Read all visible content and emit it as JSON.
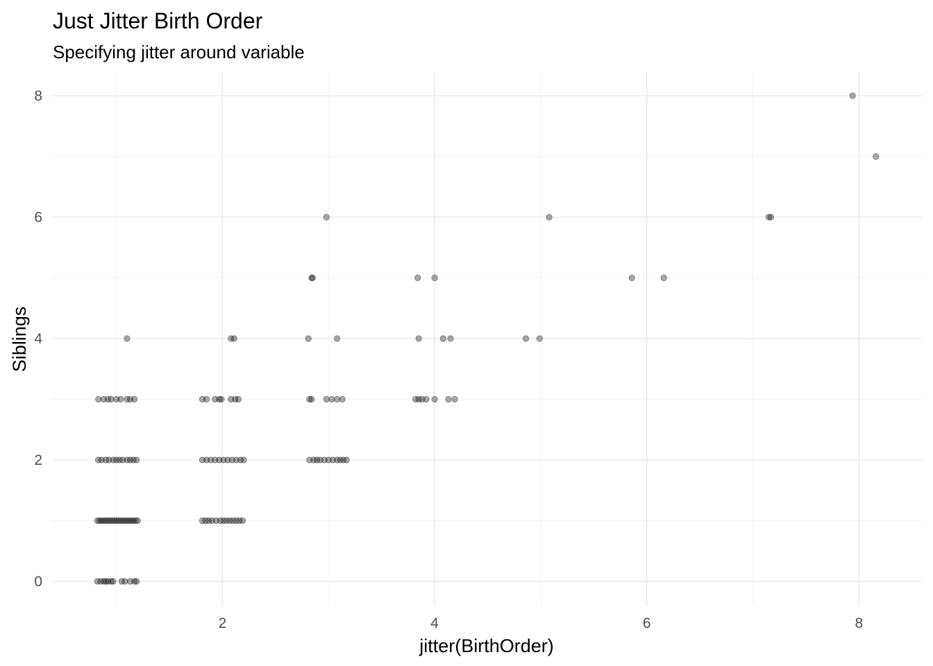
{
  "chart_data": {
    "type": "scatter",
    "title": "Just Jitter Birth Order",
    "subtitle": "Specifying jitter around variable",
    "xlabel": "jitter(BirthOrder)",
    "ylabel": "Siblings",
    "xlim": [
      0.4,
      8.6
    ],
    "ylim": [
      -0.4,
      8.4
    ],
    "x_ticks": [
      2,
      4,
      6,
      8
    ],
    "y_ticks": [
      0,
      2,
      4,
      6,
      8
    ],
    "grid": true,
    "point_color": "#000000",
    "point_alpha": 0.33,
    "points": [
      {
        "x": 0.82,
        "y": 0
      },
      {
        "x": 0.85,
        "y": 0
      },
      {
        "x": 0.88,
        "y": 0
      },
      {
        "x": 0.9,
        "y": 0
      },
      {
        "x": 0.92,
        "y": 0
      },
      {
        "x": 0.95,
        "y": 0
      },
      {
        "x": 0.97,
        "y": 0
      },
      {
        "x": 1.05,
        "y": 0
      },
      {
        "x": 1.08,
        "y": 0
      },
      {
        "x": 1.13,
        "y": 0
      },
      {
        "x": 1.17,
        "y": 0
      },
      {
        "x": 1.19,
        "y": 0
      },
      {
        "x": 0.82,
        "y": 1
      },
      {
        "x": 0.84,
        "y": 1
      },
      {
        "x": 0.86,
        "y": 1
      },
      {
        "x": 0.88,
        "y": 1
      },
      {
        "x": 0.9,
        "y": 1
      },
      {
        "x": 0.92,
        "y": 1
      },
      {
        "x": 0.94,
        "y": 1
      },
      {
        "x": 0.96,
        "y": 1
      },
      {
        "x": 0.98,
        "y": 1
      },
      {
        "x": 1.0,
        "y": 1
      },
      {
        "x": 1.02,
        "y": 1
      },
      {
        "x": 1.04,
        "y": 1
      },
      {
        "x": 1.06,
        "y": 1
      },
      {
        "x": 1.08,
        "y": 1
      },
      {
        "x": 1.1,
        "y": 1
      },
      {
        "x": 1.12,
        "y": 1
      },
      {
        "x": 1.14,
        "y": 1
      },
      {
        "x": 1.16,
        "y": 1
      },
      {
        "x": 1.18,
        "y": 1
      },
      {
        "x": 1.2,
        "y": 1
      },
      {
        "x": 0.83,
        "y": 2
      },
      {
        "x": 0.86,
        "y": 2
      },
      {
        "x": 0.9,
        "y": 2
      },
      {
        "x": 0.93,
        "y": 2
      },
      {
        "x": 0.97,
        "y": 2
      },
      {
        "x": 1.0,
        "y": 2
      },
      {
        "x": 1.03,
        "y": 2
      },
      {
        "x": 1.06,
        "y": 2
      },
      {
        "x": 1.1,
        "y": 2
      },
      {
        "x": 1.13,
        "y": 2
      },
      {
        "x": 1.16,
        "y": 2
      },
      {
        "x": 1.19,
        "y": 2
      },
      {
        "x": 0.83,
        "y": 3
      },
      {
        "x": 0.88,
        "y": 3
      },
      {
        "x": 0.92,
        "y": 3
      },
      {
        "x": 0.95,
        "y": 3
      },
      {
        "x": 1.0,
        "y": 3
      },
      {
        "x": 1.04,
        "y": 3
      },
      {
        "x": 1.1,
        "y": 3
      },
      {
        "x": 1.13,
        "y": 3
      },
      {
        "x": 1.17,
        "y": 3
      },
      {
        "x": 1.1,
        "y": 4
      },
      {
        "x": 1.81,
        "y": 1
      },
      {
        "x": 1.84,
        "y": 1
      },
      {
        "x": 1.87,
        "y": 1
      },
      {
        "x": 1.9,
        "y": 1
      },
      {
        "x": 1.94,
        "y": 1
      },
      {
        "x": 1.98,
        "y": 1
      },
      {
        "x": 2.01,
        "y": 1
      },
      {
        "x": 2.04,
        "y": 1
      },
      {
        "x": 2.07,
        "y": 1
      },
      {
        "x": 2.1,
        "y": 1
      },
      {
        "x": 2.13,
        "y": 1
      },
      {
        "x": 2.16,
        "y": 1
      },
      {
        "x": 2.19,
        "y": 1
      },
      {
        "x": 1.81,
        "y": 2
      },
      {
        "x": 1.85,
        "y": 2
      },
      {
        "x": 1.89,
        "y": 2
      },
      {
        "x": 1.93,
        "y": 2
      },
      {
        "x": 1.97,
        "y": 2
      },
      {
        "x": 2.01,
        "y": 2
      },
      {
        "x": 2.05,
        "y": 2
      },
      {
        "x": 2.09,
        "y": 2
      },
      {
        "x": 2.13,
        "y": 2
      },
      {
        "x": 2.17,
        "y": 2
      },
      {
        "x": 2.2,
        "y": 2
      },
      {
        "x": 1.81,
        "y": 3
      },
      {
        "x": 1.85,
        "y": 3
      },
      {
        "x": 1.93,
        "y": 3
      },
      {
        "x": 1.97,
        "y": 3
      },
      {
        "x": 1.99,
        "y": 3
      },
      {
        "x": 2.08,
        "y": 3
      },
      {
        "x": 2.12,
        "y": 3
      },
      {
        "x": 2.15,
        "y": 3
      },
      {
        "x": 2.08,
        "y": 4
      },
      {
        "x": 2.11,
        "y": 4
      },
      {
        "x": 2.82,
        "y": 2
      },
      {
        "x": 2.86,
        "y": 2
      },
      {
        "x": 2.89,
        "y": 2
      },
      {
        "x": 2.92,
        "y": 2
      },
      {
        "x": 2.96,
        "y": 2
      },
      {
        "x": 3.0,
        "y": 2
      },
      {
        "x": 3.04,
        "y": 2
      },
      {
        "x": 3.08,
        "y": 2
      },
      {
        "x": 3.11,
        "y": 2
      },
      {
        "x": 3.14,
        "y": 2
      },
      {
        "x": 3.17,
        "y": 2
      },
      {
        "x": 2.82,
        "y": 3
      },
      {
        "x": 2.84,
        "y": 3
      },
      {
        "x": 2.98,
        "y": 3
      },
      {
        "x": 3.03,
        "y": 3
      },
      {
        "x": 3.08,
        "y": 3
      },
      {
        "x": 3.13,
        "y": 3
      },
      {
        "x": 2.81,
        "y": 4
      },
      {
        "x": 3.08,
        "y": 4
      },
      {
        "x": 2.84,
        "y": 5
      },
      {
        "x": 2.85,
        "y": 5
      },
      {
        "x": 2.98,
        "y": 6
      },
      {
        "x": 3.82,
        "y": 3
      },
      {
        "x": 3.85,
        "y": 3
      },
      {
        "x": 3.88,
        "y": 3
      },
      {
        "x": 3.92,
        "y": 3
      },
      {
        "x": 4.0,
        "y": 3
      },
      {
        "x": 4.13,
        "y": 3
      },
      {
        "x": 4.19,
        "y": 3
      },
      {
        "x": 3.85,
        "y": 4
      },
      {
        "x": 4.08,
        "y": 4
      },
      {
        "x": 4.15,
        "y": 4
      },
      {
        "x": 3.84,
        "y": 5
      },
      {
        "x": 4.0,
        "y": 5
      },
      {
        "x": 4.86,
        "y": 4
      },
      {
        "x": 4.99,
        "y": 4
      },
      {
        "x": 5.08,
        "y": 6
      },
      {
        "x": 5.86,
        "y": 5
      },
      {
        "x": 6.16,
        "y": 5
      },
      {
        "x": 7.15,
        "y": 6
      },
      {
        "x": 7.17,
        "y": 6
      },
      {
        "x": 7.94,
        "y": 8
      },
      {
        "x": 8.16,
        "y": 7
      }
    ]
  }
}
